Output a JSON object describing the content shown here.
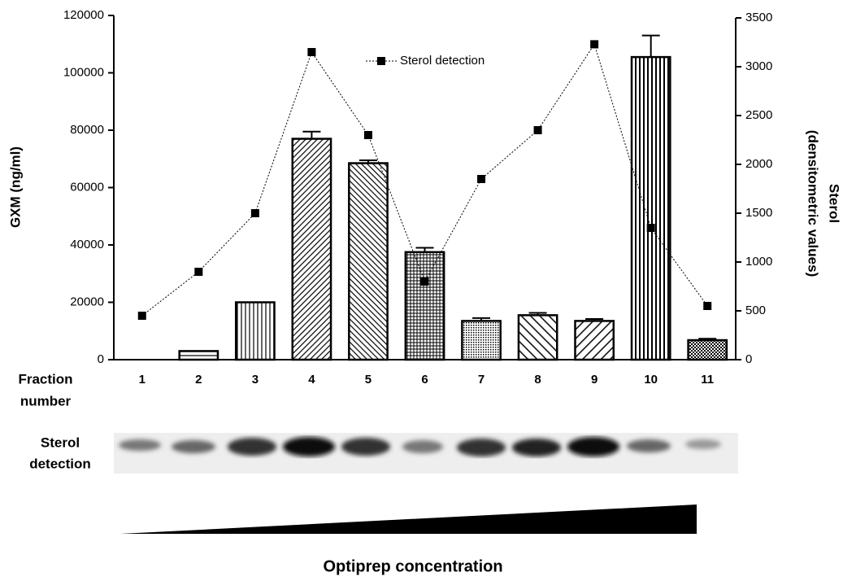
{
  "chart_data": {
    "type": "bar",
    "categories": [
      "1",
      "2",
      "3",
      "4",
      "5",
      "6",
      "7",
      "8",
      "9",
      "10",
      "11"
    ],
    "ylabel": "GXM (ng/ml)",
    "y2label": [
      "Sterol",
      "(densitometric values)"
    ],
    "ylim": [
      0,
      120000
    ],
    "yticks": [
      0,
      20000,
      40000,
      60000,
      80000,
      100000,
      120000
    ],
    "y2lim": [
      0,
      3500
    ],
    "y2ticks": [
      0,
      500,
      1000,
      1500,
      2000,
      2500,
      3000,
      3500
    ],
    "legend": "top",
    "series": [
      {
        "type": "bar",
        "color": "#000000",
        "values": [
          0,
          3000,
          20000,
          77000,
          68500,
          37500,
          13500,
          15500,
          13500,
          105500,
          6800
        ],
        "error": [
          null,
          null,
          null,
          2500,
          1000,
          1500,
          1000,
          800,
          700,
          7500,
          500
        ]
      },
      {
        "type": "line",
        "name": "Sterol detection",
        "axis": "y2",
        "color": "#000000",
        "values": [
          450,
          900,
          1500,
          3150,
          2300,
          800,
          1850,
          2350,
          3230,
          1350,
          550
        ]
      }
    ]
  },
  "figure": {
    "x_row_label": [
      "Fraction",
      "number"
    ],
    "blot_label": [
      "Sterol",
      "detection"
    ],
    "gradient_label": "Optiprep concentration"
  }
}
